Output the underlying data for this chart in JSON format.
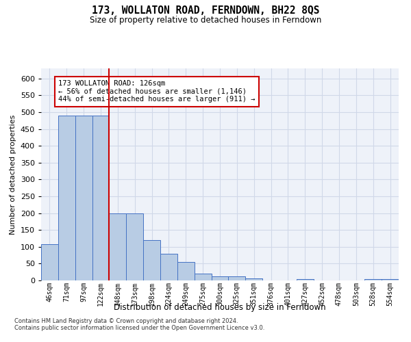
{
  "title": "173, WOLLATON ROAD, FERNDOWN, BH22 8QS",
  "subtitle": "Size of property relative to detached houses in Ferndown",
  "xlabel": "Distribution of detached houses by size in Ferndown",
  "ylabel": "Number of detached properties",
  "categories": [
    "46sqm",
    "71sqm",
    "97sqm",
    "122sqm",
    "148sqm",
    "173sqm",
    "198sqm",
    "224sqm",
    "249sqm",
    "275sqm",
    "300sqm",
    "325sqm",
    "351sqm",
    "376sqm",
    "401sqm",
    "427sqm",
    "452sqm",
    "478sqm",
    "503sqm",
    "528sqm",
    "554sqm"
  ],
  "values": [
    107,
    490,
    490,
    490,
    200,
    200,
    120,
    80,
    55,
    20,
    13,
    13,
    7,
    0,
    0,
    5,
    0,
    0,
    0,
    5,
    5
  ],
  "bar_color": "#b8cce4",
  "bar_edge_color": "#4472c4",
  "vline_index": 3.5,
  "vline_color": "#cc0000",
  "annotation_text": "173 WOLLATON ROAD: 126sqm\n← 56% of detached houses are smaller (1,146)\n44% of semi-detached houses are larger (911) →",
  "annotation_box_color": "#cc0000",
  "ylim": [
    0,
    630
  ],
  "yticks": [
    0,
    50,
    100,
    150,
    200,
    250,
    300,
    350,
    400,
    450,
    500,
    550,
    600
  ],
  "grid_color": "#d0d8e8",
  "footer1": "Contains HM Land Registry data © Crown copyright and database right 2024.",
  "footer2": "Contains public sector information licensed under the Open Government Licence v3.0.",
  "bg_color": "#eef2f9"
}
